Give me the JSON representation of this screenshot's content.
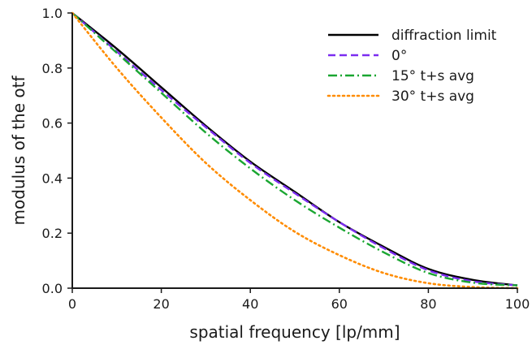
{
  "chart_data": {
    "type": "line",
    "title": "",
    "xlabel": "spatial frequency [lp/mm]",
    "ylabel": "modulus of the otf",
    "xlim": [
      0,
      100
    ],
    "ylim": [
      0,
      1.0
    ],
    "xticks": [
      0,
      20,
      40,
      60,
      80,
      100
    ],
    "yticks": [
      0.0,
      0.2,
      0.4,
      0.6,
      0.8,
      1.0
    ],
    "xtick_labels": [
      "0",
      "20",
      "40",
      "60",
      "80",
      "100"
    ],
    "ytick_labels": [
      "0.0",
      "0.2",
      "0.4",
      "0.6",
      "0.8",
      "1.0"
    ],
    "grid": false,
    "legend_position": "top-right",
    "x": [
      0,
      10,
      20,
      30,
      40,
      50,
      60,
      70,
      80,
      90,
      100
    ],
    "series": [
      {
        "name": "diffraction limit",
        "color": "#000000",
        "dash": "solid",
        "values": [
          1.0,
          0.87,
          0.73,
          0.59,
          0.46,
          0.35,
          0.24,
          0.15,
          0.07,
          0.03,
          0.01
        ]
      },
      {
        "name": "0°",
        "color": "#7b2cf0",
        "dash": "dashed",
        "values": [
          1.0,
          0.86,
          0.72,
          0.585,
          0.455,
          0.345,
          0.24,
          0.145,
          0.065,
          0.025,
          0.01
        ]
      },
      {
        "name": "15° t+s avg",
        "color": "#1aa631",
        "dash": "dashdot",
        "values": [
          1.0,
          0.855,
          0.71,
          0.565,
          0.435,
          0.32,
          0.22,
          0.13,
          0.055,
          0.02,
          0.01
        ]
      },
      {
        "name": "30° t+s avg",
        "color": "#ff8c00",
        "dash": "dotted",
        "values": [
          1.0,
          0.8,
          0.62,
          0.455,
          0.32,
          0.205,
          0.12,
          0.055,
          0.018,
          0.004,
          0.0
        ]
      }
    ]
  }
}
